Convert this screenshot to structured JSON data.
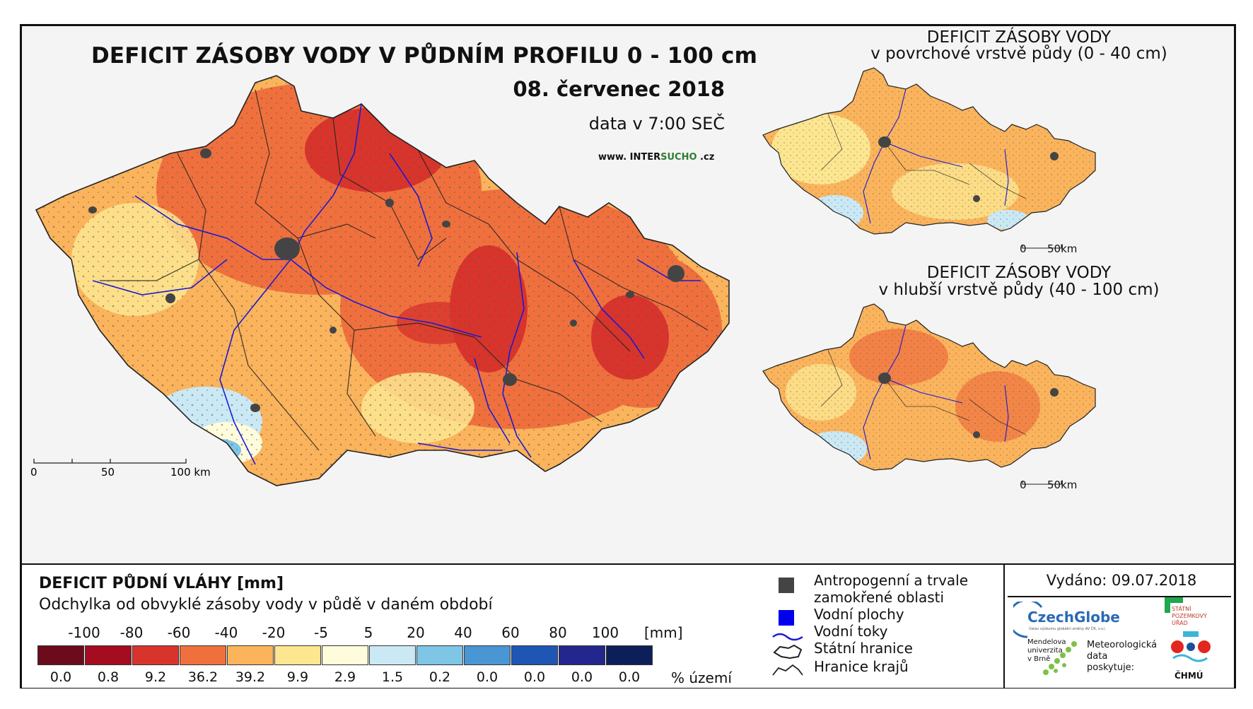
{
  "header": {
    "title": "DEFICIT ZÁSOBY VODY V PŮDNÍM PROFILU 0 - 100 cm",
    "date": "08. červenec 2018",
    "time": "data v 7:00 SEČ",
    "web_prefix": "www. INTER",
    "web_accent": "SUCHO",
    "web_suffix": " .cz"
  },
  "side_maps": [
    {
      "title": "DEFICIT ZÁSOBY VODY",
      "subtitle": "v povrchové vrstvě půdy (0 - 40 cm)",
      "scale": [
        "0",
        "50km"
      ]
    },
    {
      "title": "DEFICIT ZÁSOBY VODY",
      "subtitle": "v hlubší vrstvě půdy (40 - 100 cm)",
      "scale": [
        "0",
        "50km"
      ]
    }
  ],
  "main_scale": [
    "0",
    "50",
    "100 km"
  ],
  "legend": {
    "title": "DEFICIT PŮDNÍ VLÁHY [mm]",
    "subtitle": "Odchylka od obvyklé zásoby vody v půdě v daném období",
    "unit": "[mm]",
    "pct_unit": "% území",
    "boundaries": [
      "-100",
      "-80",
      "-60",
      "-40",
      "-20",
      "-5",
      "5",
      "20",
      "40",
      "60",
      "80",
      "100"
    ],
    "classes": [
      {
        "color": "#6b0b1c",
        "pct": "0.0"
      },
      {
        "color": "#a30d1f",
        "pct": "0.8"
      },
      {
        "color": "#d8342c",
        "pct": "9.2"
      },
      {
        "color": "#f0703d",
        "pct": "36.2"
      },
      {
        "color": "#fbb45c",
        "pct": "39.2"
      },
      {
        "color": "#fde690",
        "pct": "9.9"
      },
      {
        "color": "#fffcdc",
        "pct": "2.9"
      },
      {
        "color": "#cbe9f5",
        "pct": "1.5"
      },
      {
        "color": "#7ec5e6",
        "pct": "0.2"
      },
      {
        "color": "#4a95d3",
        "pct": "0.0"
      },
      {
        "color": "#1f56b3",
        "pct": "0.0"
      },
      {
        "color": "#23268c",
        "pct": "0.0"
      },
      {
        "color": "#0d1f58",
        "pct": "0.0"
      }
    ]
  },
  "symbols": {
    "anthropogenic_1": "Antropogenní a trvale",
    "anthropogenic_2": "zamokřené oblasti",
    "water_bodies": "Vodní plochy",
    "rivers": "Vodní toky",
    "state_border": "Státní hranice",
    "region_border": "Hranice krajů"
  },
  "issued": "Vydáno: 09.07.2018",
  "logos": {
    "czechglobe": "CzechGlobe",
    "czechglobe_sub": "Ústav výzkumu globální změny AV ČR, v.v.i.",
    "spu_1": "STÁTNÍ",
    "spu_2": "POZEMKOVÝ",
    "spu_3": "ÚŘAD",
    "mendel_1": "Mendelova",
    "mendel_2": "univerzita",
    "mendel_3": "v Brně",
    "meteo_1": "Meteorologická",
    "meteo_2": "data",
    "meteo_3": "poskytuje:",
    "chmu": "ČHMÚ"
  },
  "colors": {
    "river": "#1a1ad6",
    "urban": "#444444",
    "border": "#222222"
  }
}
